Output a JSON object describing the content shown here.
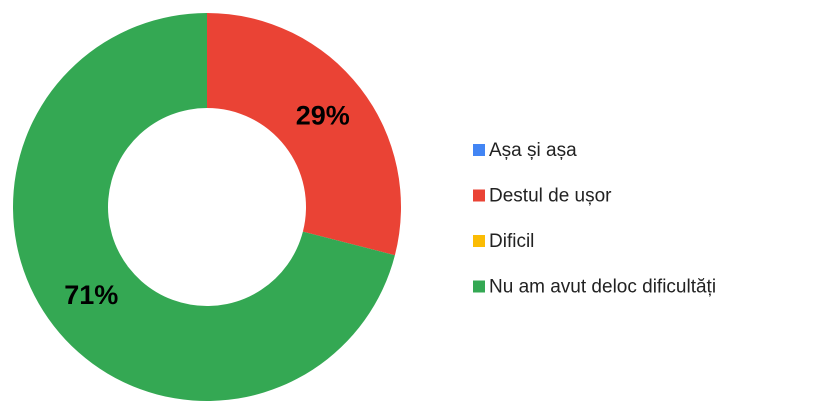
{
  "chart_data": {
    "type": "donut",
    "categories": [
      "Așa și așa",
      "Destul de ușor",
      "Dificil",
      "Nu am avut deloc dificultăți"
    ],
    "values": [
      0,
      29,
      0,
      71
    ],
    "value_labels": [
      null,
      "29%",
      null,
      "71%"
    ],
    "colors": [
      "#4285f4",
      "#ea4335",
      "#fbbc04",
      "#34a853"
    ],
    "legend": "right"
  }
}
